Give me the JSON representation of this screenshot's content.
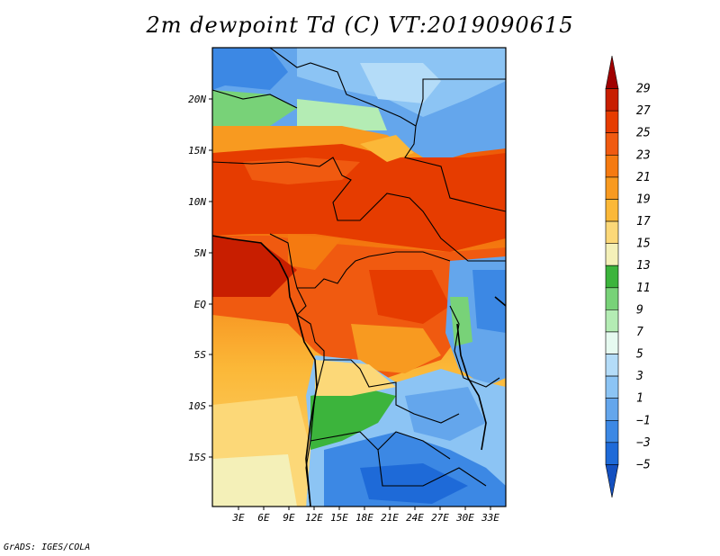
{
  "title": "2m dewpoint Td (C) VT:2019090615",
  "credit": "GrADS: IGES/COLA",
  "map": {
    "region": "Central Africa",
    "lon_labels": [
      "3E",
      "6E",
      "9E",
      "12E",
      "15E",
      "18E",
      "21E",
      "24E",
      "27E",
      "30E",
      "33E"
    ],
    "lat_labels": [
      "20N",
      "15N",
      "10N",
      "5N",
      "EQ",
      "5S",
      "10S",
      "15S"
    ]
  },
  "colorbar": {
    "labels": [
      "29",
      "27",
      "25",
      "23",
      "21",
      "19",
      "17",
      "15",
      "13",
      "11",
      "9",
      "7",
      "5",
      "3",
      "1",
      "−1",
      "−3",
      "−5"
    ],
    "colors": [
      "#a00000",
      "#c81e00",
      "#e63c00",
      "#f05a10",
      "#f57a10",
      "#f89a20",
      "#fbb838",
      "#fcd878",
      "#f4f0b8",
      "#3cb43c",
      "#78d278",
      "#b4ecb4",
      "#e6faf0",
      "#b4dcf8",
      "#8cc4f4",
      "#64a6ec",
      "#3c88e4",
      "#1e6ad8",
      "#1450c0"
    ]
  }
}
